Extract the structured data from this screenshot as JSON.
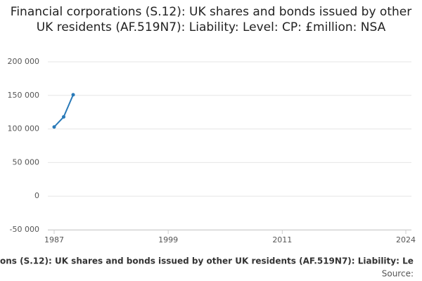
{
  "chart_data": {
    "type": "line",
    "title": "Financial corporations (S.12): UK shares and bonds issued by other UK residents (AF.519N7): Liability: Level: CP: £million: NSA",
    "x": [
      1987,
      1988,
      1989
    ],
    "series": [
      {
        "name": "Financial corporations (S.12): UK shares and bonds issued by other UK residents (AF.519N7): Liability: Level: CP: £million: NSA",
        "color": "#2a7ab8",
        "values": [
          103000,
          118000,
          151000
        ]
      }
    ],
    "xlim": [
      1987,
      2024
    ],
    "xticks": [
      1987,
      1999,
      2011,
      2024
    ],
    "ylim": [
      -50000,
      200000
    ],
    "yticks": [
      {
        "value": -50000,
        "label": "-50 000"
      },
      0,
      {
        "value": 50000,
        "label": "50 000"
      },
      {
        "value": 100000,
        "label": "100 000"
      },
      {
        "value": 150000,
        "label": "150 000"
      },
      {
        "value": 200000,
        "label": "200 000"
      }
    ],
    "grid": true,
    "caption": "ons (S.12): UK shares and bonds issued by other UK residents (AF.519N7): Liability: Le",
    "source": "Source:"
  }
}
